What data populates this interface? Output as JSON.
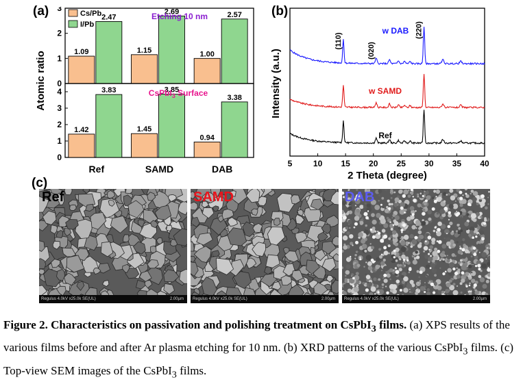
{
  "panel_labels": {
    "a": "(a)",
    "b": "(b)",
    "c": "(c)"
  },
  "colors": {
    "cs_pb": "#f9bf8f",
    "i_pb": "#8fd68f",
    "title_top": "#8b1ed0",
    "title_bottom": "#e8168e",
    "dab": "#1919ff",
    "samd": "#e01919",
    "ref": "#000000"
  },
  "chart_data": [
    {
      "type": "bar",
      "panel": "a",
      "ylabel": "Atomic ratio",
      "categories": [
        "Ref",
        "SAMD",
        "DAB"
      ],
      "subplots": [
        {
          "title": "Etching 10 nm",
          "ylim": [
            0,
            3
          ],
          "yticks": [
            "0",
            "1",
            "2",
            "3"
          ],
          "legend": [
            "Cs/Pb",
            "I/Pb"
          ],
          "series": [
            {
              "name": "Cs/Pb",
              "values": [
                1.09,
                1.15,
                1.0
              ],
              "labels": [
                "1.09",
                "1.15",
                "1.00"
              ]
            },
            {
              "name": "I/Pb",
              "values": [
                2.47,
                2.69,
                2.57
              ],
              "labels": [
                "2.47",
                "2.69",
                "2.57"
              ]
            }
          ]
        },
        {
          "title_prefix": "CsPbI",
          "title_sub": "3",
          "title_suffix": " Surface",
          "ylim": [
            0,
            4.5
          ],
          "yticks": [
            "0",
            "1",
            "2",
            "3",
            "4"
          ],
          "series": [
            {
              "name": "Cs/Pb",
              "values": [
                1.42,
                1.45,
                0.94
              ],
              "labels": [
                "1.42",
                "1.45",
                "0.94"
              ]
            },
            {
              "name": "I/Pb",
              "values": [
                3.83,
                3.85,
                3.38
              ],
              "labels": [
                "3.83",
                "3.85",
                "3.38"
              ]
            }
          ]
        }
      ]
    },
    {
      "type": "line",
      "panel": "b",
      "xlabel": "2 Theta (degree)",
      "ylabel": "Intensity (a.u.)",
      "xlim": [
        5,
        40
      ],
      "xticks": [
        "5",
        "10",
        "15",
        "20",
        "25",
        "30",
        "35",
        "40"
      ],
      "peaks": [
        {
          "x": 14.6,
          "label": "(110)"
        },
        {
          "x": 20.5,
          "label": "(020)"
        },
        {
          "x": 29.1,
          "label": "(220)"
        }
      ],
      "series": [
        {
          "name": "w DAB",
          "color": "#1919ff"
        },
        {
          "name": "w SAMD",
          "color": "#e01919"
        },
        {
          "name": "Ref",
          "color": "#000000"
        }
      ]
    }
  ],
  "sem": [
    {
      "title": "Ref",
      "title_color": "#000000",
      "info_left": "Regulus 4.0kV x25.0k SE(UL)",
      "info_right": "2.00µm"
    },
    {
      "title": "SAMD",
      "title_color": "#e8141c",
      "info_left": "Regulus 4.0kV x25.0k SE(UL)",
      "info_right": "2.00µm"
    },
    {
      "title": "DAB",
      "title_color": "#5c5cf0",
      "info_left": "Regulus 4.0kV x25.0k SE(UL)",
      "info_right": "2.00µm"
    }
  ],
  "caption": {
    "bold_prefix": "Figure 2. Characteristics on passivation and polishing treatment on CsPbI",
    "bold_sub": "3",
    "bold_suffix": " films.",
    "text_1": " (a) XPS results of the various films before and after Ar plasma etching for 10 nm. (b) XRD patterns of the various CsPbI",
    "sub_1": "3",
    "text_2": " films. (c) Top-view SEM images of the CsPbI",
    "sub_2": "3",
    "text_3": " films."
  }
}
